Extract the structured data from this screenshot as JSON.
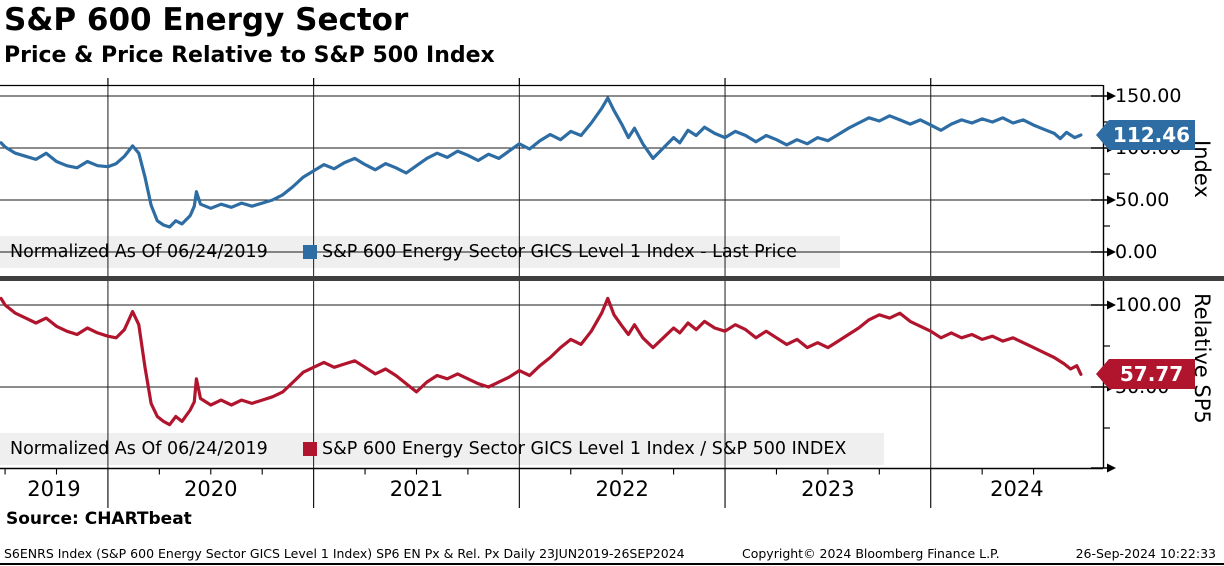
{
  "header": {
    "title": "S&P 600 Energy Sector",
    "subtitle": "Price & Price Relative to S&P 500 Index"
  },
  "top_panel": {
    "legend_note": "Normalized As Of 06/24/2019",
    "legend_series": "S&P 600 Energy Sector GICS Level 1 Index - Last Price",
    "axis_title": "Index",
    "last_value": "112.46",
    "color": "#2d6da4"
  },
  "bottom_panel": {
    "legend_note": "Normalized As Of 06/24/2019",
    "legend_series": "S&P 600 Energy Sector GICS Level 1 Index / S&P 500 INDEX",
    "axis_title": "Relative SP5",
    "last_value": "57.77",
    "color": "#b1152e"
  },
  "footer": {
    "source": "Source: CHARTbeat",
    "description": "S6ENRS Index (S&P 600 Energy Sector GICS Level 1 Index) SP6 EN Px & Rel. Px  Daily 23JUN2019-26SEP2024",
    "copyright": "Copyright© 2024 Bloomberg Finance L.P.",
    "timestamp": "26-Sep-2024 10:22:33"
  },
  "chart_data": [
    {
      "type": "line",
      "title": "S&P 600 Energy Sector GICS Level 1 Index - Last Price",
      "normalized_as_of": "06/24/2019",
      "x_unit": "decimal_year",
      "x_range": [
        2019.48,
        2024.74
      ],
      "x_axis_years": [
        "2019",
        "2020",
        "2021",
        "2022",
        "2023",
        "2024"
      ],
      "ylabel": "Index",
      "ylim": [
        0,
        160
      ],
      "yticks": [
        0,
        50,
        100,
        150
      ],
      "ytick_labels": [
        "0.00",
        "50.00",
        "100.00",
        "150.00"
      ],
      "minor_yticks": [
        25,
        75,
        125
      ],
      "grid": true,
      "last_price": 112.46,
      "series": [
        {
          "name": "S&P 600 Energy Sector GICS Level 1 Index - Last Price",
          "points": [
            [
              2019.48,
              105
            ],
            [
              2019.5,
              101
            ],
            [
              2019.55,
              95
            ],
            [
              2019.6,
              92
            ],
            [
              2019.65,
              89
            ],
            [
              2019.7,
              95
            ],
            [
              2019.75,
              87
            ],
            [
              2019.8,
              83
            ],
            [
              2019.85,
              81
            ],
            [
              2019.9,
              87
            ],
            [
              2019.95,
              83
            ],
            [
              2020.0,
              82
            ],
            [
              2020.04,
              85
            ],
            [
              2020.08,
              92
            ],
            [
              2020.12,
              102
            ],
            [
              2020.15,
              95
            ],
            [
              2020.18,
              72
            ],
            [
              2020.21,
              45
            ],
            [
              2020.24,
              30
            ],
            [
              2020.27,
              26
            ],
            [
              2020.3,
              24
            ],
            [
              2020.33,
              30
            ],
            [
              2020.36,
              27
            ],
            [
              2020.4,
              35
            ],
            [
              2020.42,
              44
            ],
            [
              2020.43,
              58
            ],
            [
              2020.45,
              46
            ],
            [
              2020.5,
              42
            ],
            [
              2020.55,
              46
            ],
            [
              2020.6,
              43
            ],
            [
              2020.65,
              47
            ],
            [
              2020.7,
              44
            ],
            [
              2020.75,
              47
            ],
            [
              2020.8,
              50
            ],
            [
              2020.85,
              55
            ],
            [
              2020.9,
              63
            ],
            [
              2020.95,
              72
            ],
            [
              2021.0,
              78
            ],
            [
              2021.05,
              84
            ],
            [
              2021.1,
              80
            ],
            [
              2021.15,
              86
            ],
            [
              2021.2,
              90
            ],
            [
              2021.25,
              84
            ],
            [
              2021.3,
              79
            ],
            [
              2021.35,
              85
            ],
            [
              2021.4,
              81
            ],
            [
              2021.45,
              76
            ],
            [
              2021.5,
              83
            ],
            [
              2021.55,
              90
            ],
            [
              2021.6,
              95
            ],
            [
              2021.65,
              91
            ],
            [
              2021.7,
              97
            ],
            [
              2021.75,
              93
            ],
            [
              2021.8,
              88
            ],
            [
              2021.85,
              94
            ],
            [
              2021.9,
              90
            ],
            [
              2021.95,
              97
            ],
            [
              2022.0,
              104
            ],
            [
              2022.05,
              99
            ],
            [
              2022.1,
              107
            ],
            [
              2022.15,
              113
            ],
            [
              2022.2,
              108
            ],
            [
              2022.25,
              116
            ],
            [
              2022.3,
              112
            ],
            [
              2022.35,
              124
            ],
            [
              2022.4,
              138
            ],
            [
              2022.43,
              148
            ],
            [
              2022.46,
              136
            ],
            [
              2022.5,
              122
            ],
            [
              2022.53,
              110
            ],
            [
              2022.56,
              119
            ],
            [
              2022.6,
              104
            ],
            [
              2022.65,
              90
            ],
            [
              2022.7,
              100
            ],
            [
              2022.75,
              110
            ],
            [
              2022.78,
              105
            ],
            [
              2022.82,
              117
            ],
            [
              2022.86,
              112
            ],
            [
              2022.9,
              120
            ],
            [
              2022.95,
              114
            ],
            [
              2023.0,
              110
            ],
            [
              2023.05,
              116
            ],
            [
              2023.1,
              112
            ],
            [
              2023.15,
              106
            ],
            [
              2023.2,
              112
            ],
            [
              2023.25,
              108
            ],
            [
              2023.3,
              103
            ],
            [
              2023.35,
              108
            ],
            [
              2023.4,
              104
            ],
            [
              2023.45,
              110
            ],
            [
              2023.5,
              107
            ],
            [
              2023.55,
              113
            ],
            [
              2023.6,
              119
            ],
            [
              2023.65,
              124
            ],
            [
              2023.7,
              129
            ],
            [
              2023.75,
              126
            ],
            [
              2023.8,
              131
            ],
            [
              2023.85,
              127
            ],
            [
              2023.9,
              123
            ],
            [
              2023.95,
              127
            ],
            [
              2024.0,
              122
            ],
            [
              2024.05,
              117
            ],
            [
              2024.1,
              123
            ],
            [
              2024.15,
              127
            ],
            [
              2024.2,
              124
            ],
            [
              2024.25,
              128
            ],
            [
              2024.3,
              125
            ],
            [
              2024.35,
              129
            ],
            [
              2024.4,
              124
            ],
            [
              2024.45,
              127
            ],
            [
              2024.5,
              122
            ],
            [
              2024.55,
              118
            ],
            [
              2024.6,
              114
            ],
            [
              2024.63,
              109
            ],
            [
              2024.66,
              115
            ],
            [
              2024.7,
              110
            ],
            [
              2024.73,
              112.46
            ]
          ]
        }
      ]
    },
    {
      "type": "line",
      "title": "S&P 600 Energy Sector GICS Level 1 Index / S&P 500 INDEX",
      "normalized_as_of": "06/24/2019",
      "x_unit": "decimal_year",
      "x_range": [
        2019.48,
        2024.74
      ],
      "x_axis_years": [
        "2019",
        "2020",
        "2021",
        "2022",
        "2023",
        "2024"
      ],
      "ylabel": "Relative SP5",
      "ylim": [
        0,
        114
      ],
      "yticks": [
        0,
        50,
        100
      ],
      "ytick_labels": [
        "",
        "50.00",
        "100.00"
      ],
      "minor_yticks": [
        25,
        75
      ],
      "grid": true,
      "last_price": 57.77,
      "series": [
        {
          "name": "S&P 600 Energy Sector GICS Level 1 Index / S&P 500 INDEX",
          "points": [
            [
              2019.48,
              104
            ],
            [
              2019.5,
              100
            ],
            [
              2019.55,
              95
            ],
            [
              2019.6,
              92
            ],
            [
              2019.65,
              89
            ],
            [
              2019.7,
              92
            ],
            [
              2019.75,
              87
            ],
            [
              2019.8,
              84
            ],
            [
              2019.85,
              82
            ],
            [
              2019.9,
              86
            ],
            [
              2019.95,
              83
            ],
            [
              2020.0,
              81
            ],
            [
              2020.04,
              80
            ],
            [
              2020.08,
              85
            ],
            [
              2020.12,
              96
            ],
            [
              2020.15,
              88
            ],
            [
              2020.18,
              62
            ],
            [
              2020.21,
              40
            ],
            [
              2020.24,
              32
            ],
            [
              2020.27,
              29
            ],
            [
              2020.3,
              27
            ],
            [
              2020.33,
              32
            ],
            [
              2020.36,
              29
            ],
            [
              2020.4,
              36
            ],
            [
              2020.42,
              41
            ],
            [
              2020.43,
              55
            ],
            [
              2020.45,
              43
            ],
            [
              2020.5,
              39
            ],
            [
              2020.55,
              42
            ],
            [
              2020.6,
              39
            ],
            [
              2020.65,
              42
            ],
            [
              2020.7,
              40
            ],
            [
              2020.75,
              42
            ],
            [
              2020.8,
              44
            ],
            [
              2020.85,
              47
            ],
            [
              2020.9,
              53
            ],
            [
              2020.95,
              59
            ],
            [
              2021.0,
              62
            ],
            [
              2021.05,
              65
            ],
            [
              2021.1,
              62
            ],
            [
              2021.15,
              64
            ],
            [
              2021.2,
              66
            ],
            [
              2021.25,
              62
            ],
            [
              2021.3,
              58
            ],
            [
              2021.35,
              61
            ],
            [
              2021.4,
              57
            ],
            [
              2021.45,
              52
            ],
            [
              2021.5,
              47
            ],
            [
              2021.55,
              53
            ],
            [
              2021.6,
              57
            ],
            [
              2021.65,
              55
            ],
            [
              2021.7,
              58
            ],
            [
              2021.75,
              55
            ],
            [
              2021.8,
              52
            ],
            [
              2021.85,
              50
            ],
            [
              2021.9,
              53
            ],
            [
              2021.95,
              56
            ],
            [
              2022.0,
              60
            ],
            [
              2022.05,
              57
            ],
            [
              2022.1,
              63
            ],
            [
              2022.15,
              68
            ],
            [
              2022.2,
              74
            ],
            [
              2022.25,
              79
            ],
            [
              2022.3,
              76
            ],
            [
              2022.35,
              84
            ],
            [
              2022.4,
              95
            ],
            [
              2022.43,
              104
            ],
            [
              2022.46,
              94
            ],
            [
              2022.5,
              87
            ],
            [
              2022.53,
              82
            ],
            [
              2022.56,
              88
            ],
            [
              2022.6,
              80
            ],
            [
              2022.65,
              74
            ],
            [
              2022.7,
              80
            ],
            [
              2022.75,
              86
            ],
            [
              2022.78,
              83
            ],
            [
              2022.82,
              89
            ],
            [
              2022.86,
              85
            ],
            [
              2022.9,
              90
            ],
            [
              2022.95,
              86
            ],
            [
              2023.0,
              84
            ],
            [
              2023.05,
              88
            ],
            [
              2023.1,
              85
            ],
            [
              2023.15,
              80
            ],
            [
              2023.2,
              84
            ],
            [
              2023.25,
              80
            ],
            [
              2023.3,
              76
            ],
            [
              2023.35,
              79
            ],
            [
              2023.4,
              74
            ],
            [
              2023.45,
              77
            ],
            [
              2023.5,
              74
            ],
            [
              2023.55,
              78
            ],
            [
              2023.6,
              82
            ],
            [
              2023.65,
              86
            ],
            [
              2023.7,
              91
            ],
            [
              2023.75,
              94
            ],
            [
              2023.8,
              92
            ],
            [
              2023.85,
              95
            ],
            [
              2023.9,
              90
            ],
            [
              2023.95,
              87
            ],
            [
              2024.0,
              84
            ],
            [
              2024.05,
              80
            ],
            [
              2024.1,
              83
            ],
            [
              2024.15,
              80
            ],
            [
              2024.2,
              82
            ],
            [
              2024.25,
              79
            ],
            [
              2024.3,
              81
            ],
            [
              2024.35,
              78
            ],
            [
              2024.4,
              80
            ],
            [
              2024.45,
              77
            ],
            [
              2024.5,
              74
            ],
            [
              2024.55,
              71
            ],
            [
              2024.6,
              68
            ],
            [
              2024.65,
              64
            ],
            [
              2024.68,
              61
            ],
            [
              2024.71,
              63
            ],
            [
              2024.73,
              57.77
            ]
          ]
        }
      ]
    }
  ]
}
